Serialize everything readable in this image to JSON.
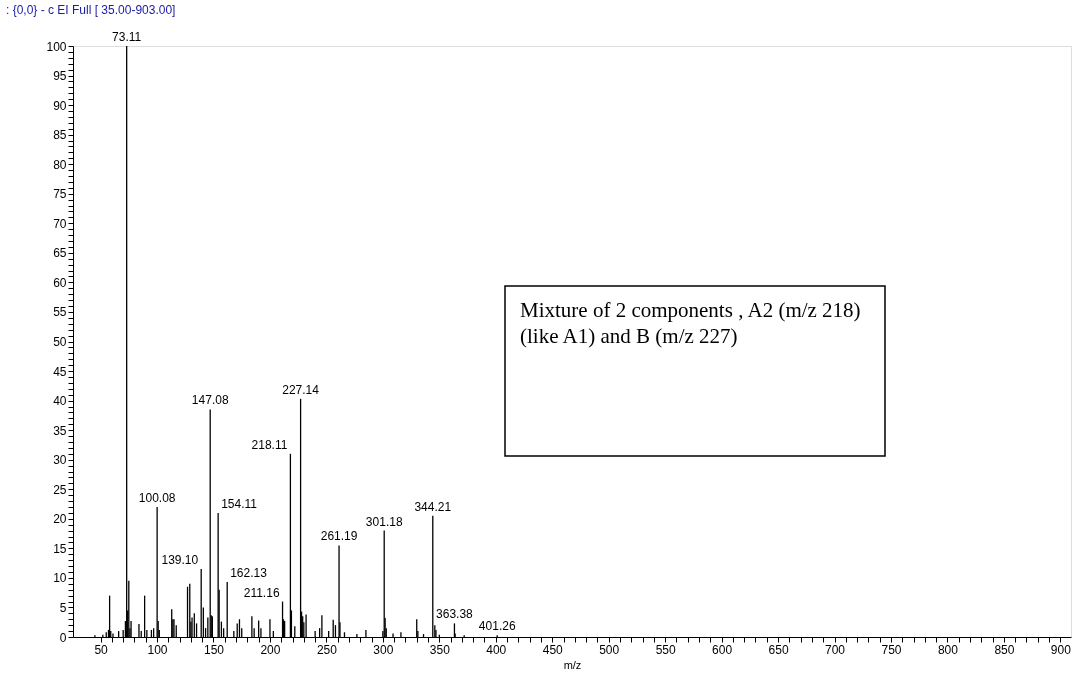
{
  "chart_data": {
    "type": "bar",
    "title": ": {0,0} - c EI Full [ 35.00-903.00]",
    "xlabel": "m/z",
    "x": [
      45,
      52,
      55,
      57,
      58,
      59,
      61,
      66,
      70,
      72,
      73.11,
      74,
      75,
      76,
      77,
      84,
      86,
      89,
      91,
      95,
      97,
      100.08,
      101,
      102,
      113,
      114,
      115,
      117,
      127,
      129,
      130,
      131,
      133,
      135,
      139.1,
      141,
      143,
      145,
      147.08,
      148,
      149,
      154.11,
      155,
      157,
      159,
      162.13,
      168,
      171,
      173,
      175,
      184,
      186,
      190,
      192,
      200,
      203,
      211.16,
      212,
      213,
      218.11,
      219,
      222,
      227.14,
      228,
      229,
      230,
      232,
      240,
      244,
      246,
      252,
      256,
      258,
      261.19,
      262,
      266,
      277,
      285,
      300,
      301.18,
      302,
      303,
      309,
      316,
      330,
      331,
      336,
      344.21,
      345,
      346,
      347,
      350,
      363.38,
      364,
      372,
      380,
      401.26
    ],
    "series": [
      {
        "color": "#000000",
        "values": [
          0.3,
          0.4,
          0.8,
          1.2,
          7,
          1,
          0.6,
          1,
          1.2,
          2.7,
          100,
          4.5,
          9.5,
          1.5,
          2.7,
          2.2,
          1,
          7,
          1.2,
          1.2,
          1.5,
          22,
          2.7,
          1.2,
          4.7,
          3,
          3,
          2,
          8.5,
          9,
          2.6,
          3.3,
          4,
          2.3,
          11.5,
          5,
          1.5,
          3.3,
          38.5,
          3.7,
          3.5,
          21,
          8,
          2.6,
          1.5,
          9.3,
          1,
          2.3,
          3,
          1.5,
          3.5,
          1.5,
          2.8,
          1.5,
          3,
          1,
          6,
          3,
          2.7,
          31,
          4.5,
          1.8,
          40.3,
          4.3,
          3.5,
          2.5,
          3.8,
          1,
          1.5,
          3.7,
          1,
          2.9,
          2,
          15.5,
          2.5,
          0.8,
          0.5,
          1.2,
          1,
          18,
          3.2,
          1.5,
          0.6,
          0.8,
          3,
          1,
          0.5,
          20.5,
          null,
          2,
          1.2,
          0.4,
          2.3,
          0.6,
          0.3,
          null,
          0.3
        ]
      }
    ],
    "xlim": [
      30,
      905
    ],
    "ylim": [
      0,
      100
    ],
    "xticks": [
      50,
      {
        "value": 60,
        "label": null
      },
      {
        "value": 70,
        "label": null
      },
      {
        "value": 80,
        "label": null
      },
      {
        "value": 90,
        "label": null
      },
      100,
      {
        "value": 110,
        "label": null
      },
      {
        "value": 120,
        "label": null
      },
      {
        "value": 130,
        "label": null
      },
      {
        "value": 140,
        "label": null
      },
      150,
      {
        "value": 160,
        "label": null
      },
      {
        "value": 170,
        "label": null
      },
      {
        "value": 180,
        "label": null
      },
      {
        "value": 190,
        "label": null
      },
      200,
      {
        "value": 210,
        "label": null
      },
      {
        "value": 220,
        "label": null
      },
      {
        "value": 230,
        "label": null
      },
      {
        "value": 240,
        "label": null
      },
      250,
      {
        "value": 260,
        "label": null
      },
      {
        "value": 270,
        "label": null
      },
      {
        "value": 280,
        "label": null
      },
      {
        "value": 290,
        "label": null
      },
      300,
      {
        "value": 310,
        "label": null
      },
      {
        "value": 320,
        "label": null
      },
      {
        "value": 330,
        "label": null
      },
      {
        "value": 340,
        "label": null
      },
      350,
      {
        "value": 360,
        "label": null
      },
      {
        "value": 370,
        "label": null
      },
      {
        "value": 380,
        "label": null
      },
      {
        "value": 390,
        "label": null
      },
      400,
      {
        "value": 410,
        "label": null
      },
      {
        "value": 420,
        "label": null
      },
      {
        "value": 430,
        "label": null
      },
      {
        "value": 440,
        "label": null
      },
      450,
      {
        "value": 460,
        "label": null
      },
      {
        "value": 470,
        "label": null
      },
      {
        "value": 480,
        "label": null
      },
      {
        "value": 490,
        "label": null
      },
      500,
      {
        "value": 510,
        "label": null
      },
      {
        "value": 520,
        "label": null
      },
      {
        "value": 530,
        "label": null
      },
      {
        "value": 540,
        "label": null
      },
      550,
      {
        "value": 560,
        "label": null
      },
      {
        "value": 570,
        "label": null
      },
      {
        "value": 580,
        "label": null
      },
      {
        "value": 590,
        "label": null
      },
      600,
      {
        "value": 610,
        "label": null
      },
      {
        "value": 620,
        "label": null
      },
      {
        "value": 630,
        "label": null
      },
      {
        "value": 640,
        "label": null
      },
      650,
      {
        "value": 660,
        "label": null
      },
      {
        "value": 670,
        "label": null
      },
      {
        "value": 680,
        "label": null
      },
      {
        "value": 690,
        "label": null
      },
      700,
      {
        "value": 710,
        "label": null
      },
      {
        "value": 720,
        "label": null
      },
      {
        "value": 730,
        "label": null
      },
      {
        "value": 740,
        "label": null
      },
      750,
      {
        "value": 760,
        "label": null
      },
      {
        "value": 770,
        "label": null
      },
      {
        "value": 780,
        "label": null
      },
      {
        "value": 790,
        "label": null
      },
      800,
      {
        "value": 810,
        "label": null
      },
      {
        "value": 820,
        "label": null
      },
      {
        "value": 830,
        "label": null
      },
      {
        "value": 840,
        "label": null
      },
      850,
      {
        "value": 860,
        "label": null
      },
      {
        "value": 870,
        "label": null
      },
      {
        "value": 880,
        "label": null
      },
      {
        "value": 890,
        "label": null
      },
      900
    ],
    "yticks": [
      0,
      {
        "value": 1,
        "label": null
      },
      {
        "value": 2,
        "label": null
      },
      {
        "value": 3,
        "label": null
      },
      {
        "value": 4,
        "label": null
      },
      5,
      {
        "value": 6,
        "label": null
      },
      {
        "value": 7,
        "label": null
      },
      {
        "value": 8,
        "label": null
      },
      {
        "value": 9,
        "label": null
      },
      10,
      {
        "value": 11,
        "label": null
      },
      {
        "value": 12,
        "label": null
      },
      {
        "value": 13,
        "label": null
      },
      {
        "value": 14,
        "label": null
      },
      15,
      {
        "value": 16,
        "label": null
      },
      {
        "value": 17,
        "label": null
      },
      {
        "value": 18,
        "label": null
      },
      {
        "value": 19,
        "label": null
      },
      20,
      {
        "value": 21,
        "label": null
      },
      {
        "value": 22,
        "label": null
      },
      {
        "value": 23,
        "label": null
      },
      {
        "value": 24,
        "label": null
      },
      25,
      {
        "value": 26,
        "label": null
      },
      {
        "value": 27,
        "label": null
      },
      {
        "value": 28,
        "label": null
      },
      {
        "value": 29,
        "label": null
      },
      30,
      {
        "value": 31,
        "label": null
      },
      {
        "value": 32,
        "label": null
      },
      {
        "value": 33,
        "label": null
      },
      {
        "value": 34,
        "label": null
      },
      35,
      {
        "value": 36,
        "label": null
      },
      {
        "value": 37,
        "label": null
      },
      {
        "value": 38,
        "label": null
      },
      {
        "value": 39,
        "label": null
      },
      40,
      {
        "value": 41,
        "label": null
      },
      {
        "value": 42,
        "label": null
      },
      {
        "value": 43,
        "label": null
      },
      {
        "value": 44,
        "label": null
      },
      45,
      {
        "value": 46,
        "label": null
      },
      {
        "value": 47,
        "label": null
      },
      {
        "value": 48,
        "label": null
      },
      {
        "value": 49,
        "label": null
      },
      50,
      {
        "value": 51,
        "label": null
      },
      {
        "value": 52,
        "label": null
      },
      {
        "value": 53,
        "label": null
      },
      {
        "value": 54,
        "label": null
      },
      55,
      {
        "value": 56,
        "label": null
      },
      {
        "value": 57,
        "label": null
      },
      {
        "value": 58,
        "label": null
      },
      {
        "value": 59,
        "label": null
      },
      60,
      {
        "value": 61,
        "label": null
      },
      {
        "value": 62,
        "label": null
      },
      {
        "value": 63,
        "label": null
      },
      {
        "value": 64,
        "label": null
      },
      65,
      {
        "value": 66,
        "label": null
      },
      {
        "value": 67,
        "label": null
      },
      {
        "value": 68,
        "label": null
      },
      {
        "value": 69,
        "label": null
      },
      70,
      {
        "value": 71,
        "label": null
      },
      {
        "value": 72,
        "label": null
      },
      {
        "value": 73,
        "label": null
      },
      {
        "value": 74,
        "label": null
      },
      75,
      {
        "value": 76,
        "label": null
      },
      {
        "value": 77,
        "label": null
      },
      {
        "value": 78,
        "label": null
      },
      {
        "value": 79,
        "label": null
      },
      80,
      {
        "value": 81,
        "label": null
      },
      {
        "value": 82,
        "label": null
      },
      {
        "value": 83,
        "label": null
      },
      {
        "value": 84,
        "label": null
      },
      85,
      {
        "value": 86,
        "label": null
      },
      {
        "value": 87,
        "label": null
      },
      {
        "value": 88,
        "label": null
      },
      {
        "value": 89,
        "label": null
      },
      90,
      {
        "value": 91,
        "label": null
      },
      {
        "value": 92,
        "label": null
      },
      {
        "value": 93,
        "label": null
      },
      {
        "value": 94,
        "label": null
      },
      95,
      {
        "value": 96,
        "label": null
      },
      {
        "value": 97,
        "label": null
      },
      {
        "value": 98,
        "label": null
      },
      {
        "value": 99,
        "label": null
      },
      100
    ],
    "grid": false,
    "annotations": [
      {
        "text": "73.11",
        "x": 73.11,
        "y": 100
      },
      {
        "text": "100.08",
        "x": 100.08,
        "y": 22
      },
      {
        "text": "139.10",
        "x": 139.1,
        "y": 11.5
      },
      {
        "text": "147.08",
        "x": 147.08,
        "y": 38.5
      },
      {
        "text": "154.11",
        "x": 154.11,
        "y": 21
      },
      {
        "text": "162.13",
        "x": 162.13,
        "y": 9.3
      },
      {
        "text": "211.16",
        "x": 211.16,
        "y": 6
      },
      {
        "text": "218.11",
        "x": 218.11,
        "y": 31
      },
      {
        "text": "227.14",
        "x": 227.14,
        "y": 40.3
      },
      {
        "text": "261.19",
        "x": 261.19,
        "y": 15.5
      },
      {
        "text": "301.18",
        "x": 301.18,
        "y": 18
      },
      {
        "text": "344.21",
        "x": 344.21,
        "y": 20.5
      },
      {
        "text": "363.38",
        "x": 363.38,
        "y": 2.3
      },
      {
        "text": "401.26",
        "x": 401.26,
        "y": 0.3
      },
      "Mixture of 2 components , A2 (m/z 218) (like A1) and B (m/z 227)"
    ]
  }
}
